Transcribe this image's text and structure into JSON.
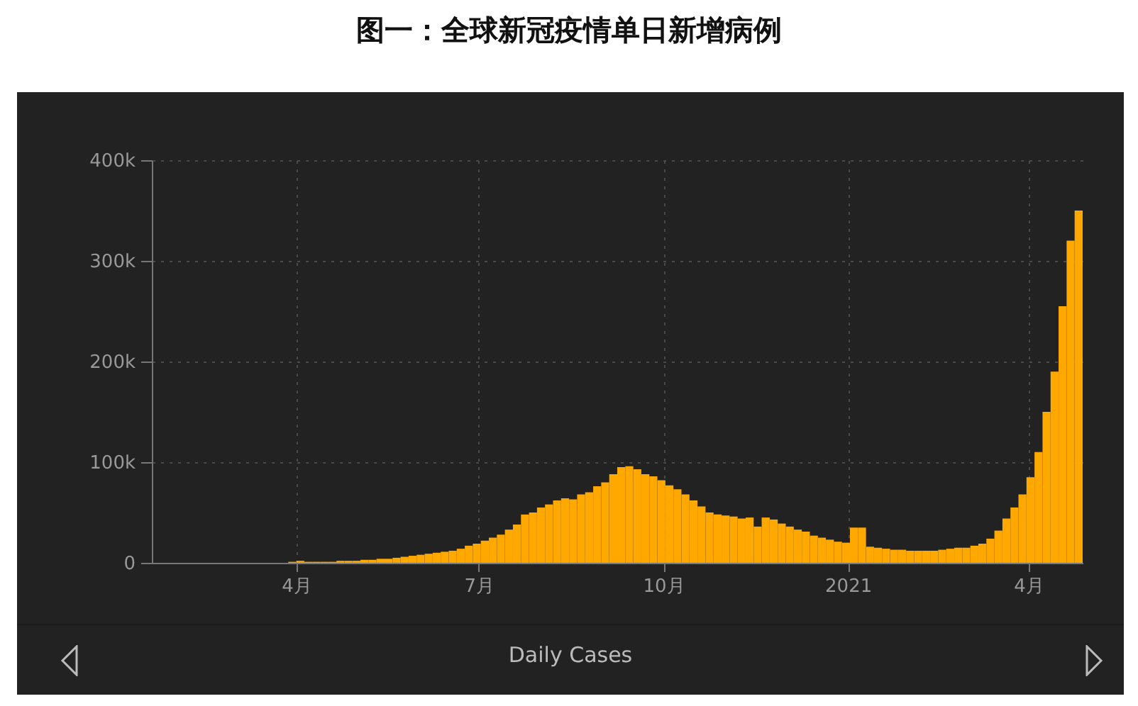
{
  "chart_data": {
    "type": "bar",
    "title": "图一：全球新冠疫情单日新增病例",
    "annotations": [
      "Daily Cases"
    ],
    "x": [
      "2020-01-22",
      "2020-01-26",
      "2020-01-30",
      "2020-02-03",
      "2020-02-07",
      "2020-02-11",
      "2020-02-15",
      "2020-02-19",
      "2020-02-23",
      "2020-02-27",
      "2020-03-02",
      "2020-03-06",
      "2020-03-10",
      "2020-03-14",
      "2020-03-18",
      "2020-03-22",
      "2020-03-26",
      "2020-03-30",
      "2020-04-03",
      "2020-04-07",
      "2020-04-11",
      "2020-04-15",
      "2020-04-19",
      "2020-04-23",
      "2020-04-27",
      "2020-05-01",
      "2020-05-05",
      "2020-05-09",
      "2020-05-13",
      "2020-05-17",
      "2020-05-21",
      "2020-05-25",
      "2020-05-29",
      "2020-06-02",
      "2020-06-06",
      "2020-06-10",
      "2020-06-14",
      "2020-06-18",
      "2020-06-22",
      "2020-06-26",
      "2020-06-30",
      "2020-07-04",
      "2020-07-08",
      "2020-07-12",
      "2020-07-16",
      "2020-07-20",
      "2020-07-24",
      "2020-07-28",
      "2020-08-01",
      "2020-08-05",
      "2020-08-09",
      "2020-08-13",
      "2020-08-17",
      "2020-08-21",
      "2020-08-25",
      "2020-08-29",
      "2020-09-02",
      "2020-09-06",
      "2020-09-10",
      "2020-09-14",
      "2020-09-18",
      "2020-09-22",
      "2020-09-26",
      "2020-09-30",
      "2020-10-04",
      "2020-10-08",
      "2020-10-12",
      "2020-10-16",
      "2020-10-20",
      "2020-10-24",
      "2020-10-28",
      "2020-11-01",
      "2020-11-05",
      "2020-11-09",
      "2020-11-13",
      "2020-11-17",
      "2020-11-21",
      "2020-11-25",
      "2020-11-29",
      "2020-12-03",
      "2020-12-07",
      "2020-12-11",
      "2020-12-15",
      "2020-12-19",
      "2020-12-23",
      "2020-12-27",
      "2020-12-31",
      "2021-01-04",
      "2021-01-08",
      "2021-01-12",
      "2021-01-16",
      "2021-01-20",
      "2021-01-24",
      "2021-01-28",
      "2021-02-01",
      "2021-02-05",
      "2021-02-09",
      "2021-02-13",
      "2021-02-17",
      "2021-02-21",
      "2021-02-25",
      "2021-03-01",
      "2021-03-05",
      "2021-03-09",
      "2021-03-13",
      "2021-03-17",
      "2021-03-21",
      "2021-03-25",
      "2021-03-29",
      "2021-04-02",
      "2021-04-06",
      "2021-04-10",
      "2021-04-14",
      "2021-04-18",
      "2021-04-22",
      "2021-04-26"
    ],
    "series": [
      {
        "color": "#ffa800",
        "values": [
          0,
          0,
          0,
          0,
          0,
          0,
          0,
          0,
          0,
          0,
          0,
          0,
          0,
          0,
          0,
          0,
          0,
          1000,
          2000,
          1000,
          1000,
          1000,
          1000,
          2000,
          2000,
          2000,
          3000,
          3000,
          4000,
          4000,
          5000,
          6000,
          7000,
          8000,
          9000,
          10000,
          11000,
          12000,
          14000,
          17000,
          19000,
          22000,
          25000,
          28000,
          33000,
          38000,
          48000,
          50000,
          55000,
          58000,
          62000,
          64000,
          63000,
          68000,
          70000,
          76000,
          80000,
          88000,
          95000,
          96000,
          93000,
          88000,
          86000,
          82000,
          77000,
          73000,
          68000,
          62000,
          56000,
          50000,
          48000,
          47000,
          46000,
          44000,
          45000,
          36000,
          45000,
          43000,
          39000,
          36000,
          33000,
          31000,
          27000,
          25000,
          23000,
          21000,
          20000,
          35000,
          35000,
          16000,
          15000,
          14000,
          13000,
          13000,
          12000,
          12000,
          12000,
          12000,
          13000,
          14000,
          15000,
          15000,
          17000,
          19000,
          24000,
          32000,
          44000,
          55000,
          68000,
          85000,
          110000,
          150000,
          190000,
          255000,
          320000,
          350000
        ]
      }
    ],
    "xlim": [
      "2020-01-20",
      "2021-04-28"
    ],
    "xticks": [
      {
        "value": "2020-04-01",
        "label": "4月"
      },
      {
        "value": "2020-07-01",
        "label": "7月"
      },
      {
        "value": "2020-10-01",
        "label": "10月"
      },
      {
        "value": "2021-01-01",
        "label": "2021"
      },
      {
        "value": "2021-04-01",
        "label": "4月"
      }
    ],
    "ylim": [
      0,
      400000
    ],
    "yticks": [
      0,
      {
        "value": 100000,
        "label": "100k"
      },
      {
        "value": 200000,
        "label": "200k"
      },
      {
        "value": 300000,
        "label": "300k"
      },
      {
        "value": 400000,
        "label": "400k"
      }
    ],
    "grid": true
  }
}
